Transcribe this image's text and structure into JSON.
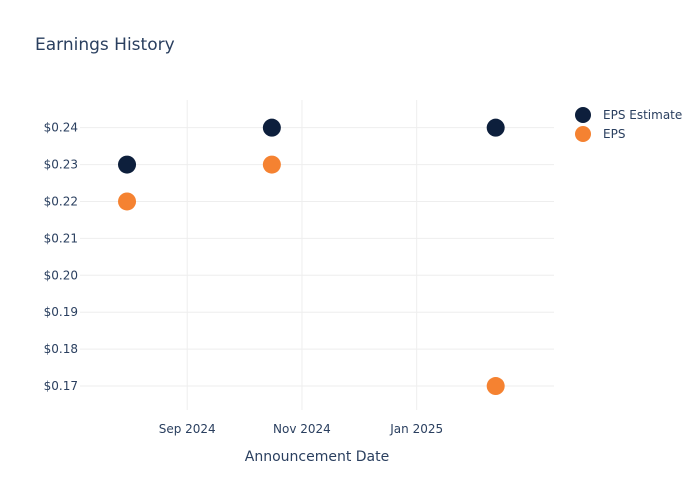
{
  "chart_data": {
    "type": "scatter",
    "title": "Earnings History",
    "xlabel": "Announcement Date",
    "ylabel": "",
    "x_ticks": [
      "Sep 2024",
      "Nov 2024",
      "Jan 2025"
    ],
    "x_tick_dates": [
      "2024-09-01",
      "2024-11-01",
      "2025-01-01"
    ],
    "xlim": [
      "2024-07-06",
      "2025-03-15"
    ],
    "ylim": [
      0.1635,
      0.2475
    ],
    "y_ticks": [
      "$0.17",
      "$0.18",
      "$0.19",
      "$0.20",
      "$0.21",
      "$0.22",
      "$0.23",
      "$0.24"
    ],
    "y_tick_values": [
      0.17,
      0.18,
      0.19,
      0.2,
      0.21,
      0.22,
      0.23,
      0.24
    ],
    "grid": true,
    "legend_position": "top-right",
    "series": [
      {
        "name": "EPS Estimate",
        "color": "#0d1f3c",
        "points": [
          {
            "x": "2024-07-31",
            "y": 0.23
          },
          {
            "x": "2024-10-16",
            "y": 0.24
          },
          {
            "x": "2025-02-12",
            "y": 0.24
          }
        ]
      },
      {
        "name": "EPS",
        "color": "#f58231",
        "points": [
          {
            "x": "2024-07-31",
            "y": 0.22
          },
          {
            "x": "2024-10-16",
            "y": 0.23
          },
          {
            "x": "2025-02-12",
            "y": 0.17
          }
        ]
      }
    ]
  }
}
